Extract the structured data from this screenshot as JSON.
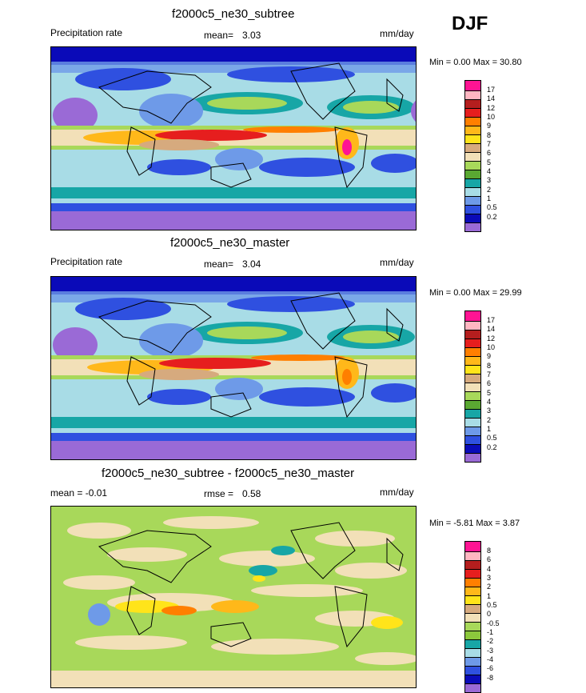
{
  "season": "DJF",
  "units": "mm/day",
  "colors": {
    "abs": [
      "#9a6ad6",
      "#0a0ab8",
      "#2f50e0",
      "#6e9ae8",
      "#a8dce6",
      "#17a6a6",
      "#a8d85a",
      "#5aa832",
      "#f2e0b8",
      "#d6aa7e",
      "#ffe41a",
      "#ffb81a",
      "#ff7f00",
      "#e61e1e",
      "#b41e1e",
      "#ffb6c1",
      "#ff1493"
    ],
    "diff": [
      "#9a6ad6",
      "#0a0ab8",
      "#2f50e0",
      "#6e9ae8",
      "#a8dce6",
      "#17a6a6",
      "#a8d85a",
      "#8cc83c",
      "#f2e0b8",
      "#d6aa7e",
      "#ffe41a",
      "#ffb81a",
      "#ff7f00",
      "#e61e1e",
      "#b41e1e",
      "#ffb6c1",
      "#ff1493"
    ]
  },
  "panels": [
    {
      "title": "f2000c5_ne30_subtree",
      "left_label": "Precipitation rate",
      "mean_label": "mean=",
      "mean_value": "3.03",
      "units": "mm/day",
      "minmax": "Min =   0.00 Max =  30.80"
    },
    {
      "title": "f2000c5_ne30_master",
      "left_label": "Precipitation rate",
      "mean_label": "mean=",
      "mean_value": "3.04",
      "units": "mm/day",
      "minmax": "Min =   0.00 Max =  29.99"
    },
    {
      "title": "f2000c5_ne30_subtree - f2000c5_ne30_master",
      "left_label": "mean =  -0.01",
      "mean_label": "rmse =",
      "mean_value": "0.58",
      "units": "mm/day",
      "minmax": "Min =  -5.81 Max =   3.87"
    }
  ],
  "chart_data": [
    {
      "type": "heatmap",
      "title": "f2000c5_ne30_subtree",
      "variable": "Precipitation rate",
      "units": "mm/day",
      "mean": 3.03,
      "min": 0.0,
      "max": 30.8,
      "colorbar_levels": [
        "0.2",
        "0.5",
        "1",
        "2",
        "3",
        "4",
        "5",
        "6",
        "7",
        "8",
        "9",
        "10",
        "12",
        "14",
        "17"
      ]
    },
    {
      "type": "heatmap",
      "title": "f2000c5_ne30_master",
      "variable": "Precipitation rate",
      "units": "mm/day",
      "mean": 3.04,
      "min": 0.0,
      "max": 29.99,
      "colorbar_levels": [
        "0.2",
        "0.5",
        "1",
        "2",
        "3",
        "4",
        "5",
        "6",
        "7",
        "8",
        "9",
        "10",
        "12",
        "14",
        "17"
      ]
    },
    {
      "type": "heatmap",
      "title": "f2000c5_ne30_subtree - f2000c5_ne30_master",
      "units": "mm/day",
      "mean": -0.01,
      "rmse": 0.58,
      "min": -5.81,
      "max": 3.87,
      "colorbar_levels": [
        "-8",
        "-6",
        "-4",
        "-3",
        "-2",
        "-1",
        "-0.5",
        "0",
        "0.5",
        "1",
        "2",
        "3",
        "4",
        "6",
        "8"
      ]
    }
  ]
}
